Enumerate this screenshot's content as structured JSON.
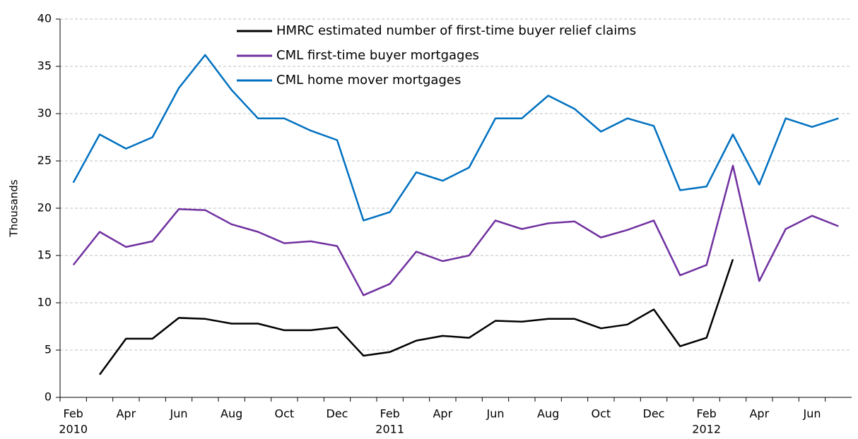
{
  "chart_data": {
    "type": "line",
    "categories": [
      "Feb",
      null,
      "Apr",
      null,
      "Jun",
      null,
      "Aug",
      null,
      "Oct",
      null,
      "Dec",
      null,
      "Feb",
      null,
      "Apr",
      null,
      "Jun",
      null,
      "Aug",
      null,
      "Oct",
      null,
      "Dec",
      null,
      "Feb",
      null,
      "Apr",
      null,
      "Jun",
      null
    ],
    "years": [
      "2010",
      null,
      null,
      null,
      null,
      null,
      null,
      null,
      null,
      null,
      null,
      null,
      "2011",
      null,
      null,
      null,
      null,
      null,
      null,
      null,
      null,
      null,
      null,
      null,
      "2012",
      null,
      null,
      null,
      null,
      null
    ],
    "ylabel": "Thousands",
    "ylim": [
      0,
      40
    ],
    "yticks": [
      0,
      5,
      10,
      15,
      20,
      25,
      30,
      35,
      40
    ],
    "grid": true,
    "legend": "top",
    "series": [
      {
        "name": "HMRC estimated number of first-time buyer relief claims",
        "color": "#000000",
        "values": [
          null,
          2.4,
          6.2,
          6.2,
          8.4,
          8.3,
          7.8,
          7.8,
          7.1,
          7.1,
          7.4,
          4.4,
          4.8,
          6.0,
          6.5,
          6.3,
          8.1,
          8.0,
          8.3,
          8.3,
          7.3,
          7.7,
          9.3,
          5.4,
          6.3,
          14.6,
          null,
          null,
          null,
          null
        ]
      },
      {
        "name": "CML first-time buyer mortgages",
        "color": "#7030a0",
        "values": [
          14.0,
          17.5,
          15.9,
          16.5,
          19.9,
          19.8,
          18.3,
          17.5,
          16.3,
          16.5,
          16.0,
          10.8,
          12.0,
          15.4,
          14.4,
          15.0,
          18.7,
          17.8,
          18.4,
          18.6,
          16.9,
          17.7,
          18.7,
          12.9,
          14.0,
          24.5,
          12.3,
          17.8,
          19.2,
          18.1
        ]
      },
      {
        "name": "CML home mover mortgages",
        "color": "#0070c0",
        "values": [
          22.7,
          27.8,
          26.3,
          27.5,
          32.7,
          36.2,
          32.5,
          29.5,
          29.5,
          28.2,
          27.2,
          18.7,
          19.6,
          23.8,
          22.9,
          24.3,
          29.5,
          29.5,
          31.9,
          30.5,
          28.1,
          29.5,
          28.7,
          21.9,
          22.3,
          27.8,
          22.5,
          29.5,
          28.6,
          29.5
        ]
      }
    ]
  }
}
